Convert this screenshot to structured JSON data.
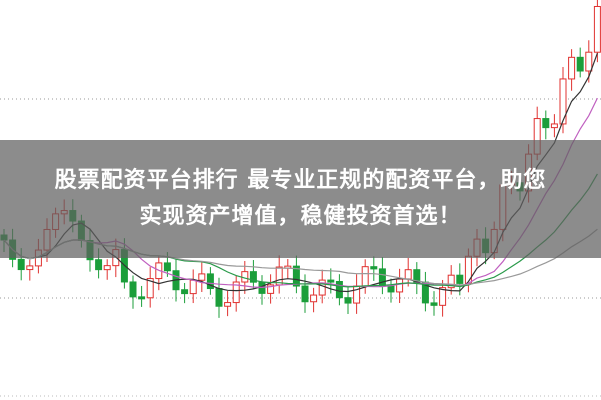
{
  "banner": {
    "lines": [
      "股票配资平台排行 最专业正规的配资平台，助您",
      "实现资产增值，稳健投资首选！"
    ]
  }
}
